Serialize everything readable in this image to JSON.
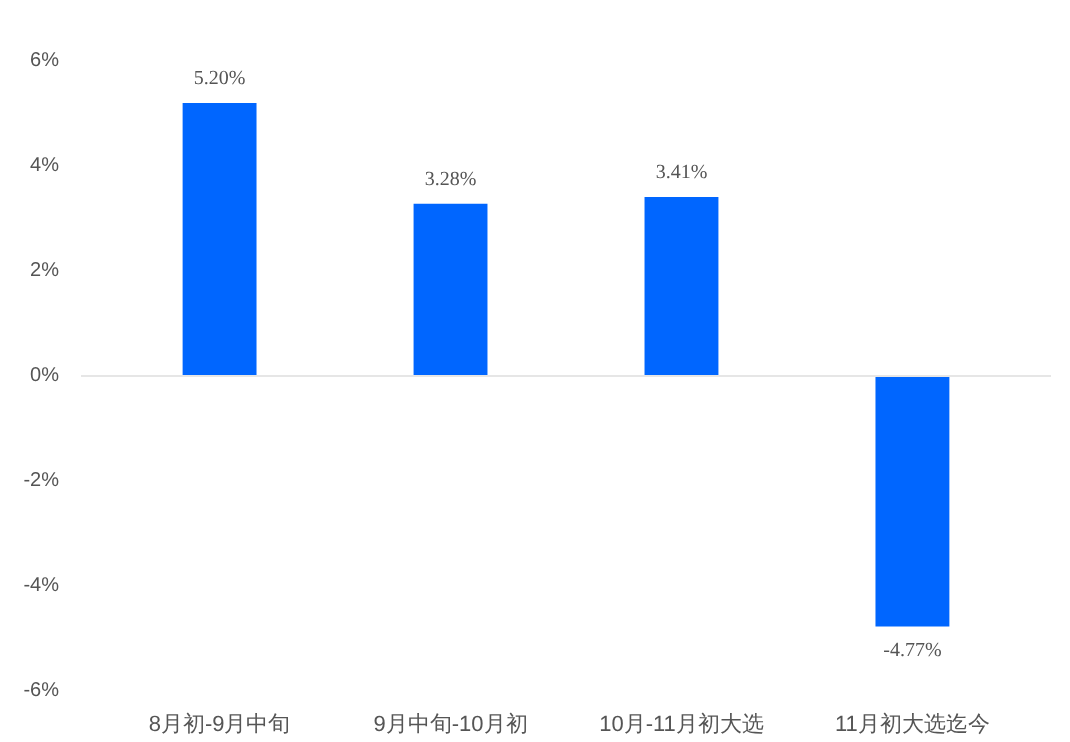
{
  "chart_data": {
    "type": "bar",
    "categories": [
      "8月初-9月中旬",
      "9月中旬-10月初",
      "10月-11月初大选",
      "11月初大选迄今"
    ],
    "values": [
      5.2,
      3.28,
      3.41,
      -4.77
    ],
    "value_labels": [
      "5.20%",
      "3.28%",
      "3.41%",
      "-4.77%"
    ],
    "color": "#0066ff",
    "ylim": [
      -6,
      6
    ],
    "yticks": [
      {
        "value": -6,
        "label": "-6%"
      },
      {
        "value": -4,
        "label": "-4%"
      },
      {
        "value": -2,
        "label": "-2%"
      },
      {
        "value": 0,
        "label": "0%"
      },
      {
        "value": 2,
        "label": "2%"
      },
      {
        "value": 4,
        "label": "4%"
      },
      {
        "value": 6,
        "label": "6%"
      }
    ],
    "ref_lines": [
      {
        "axis": "y",
        "value": 0,
        "color": "#e6e6e6"
      }
    ],
    "grid": false
  }
}
